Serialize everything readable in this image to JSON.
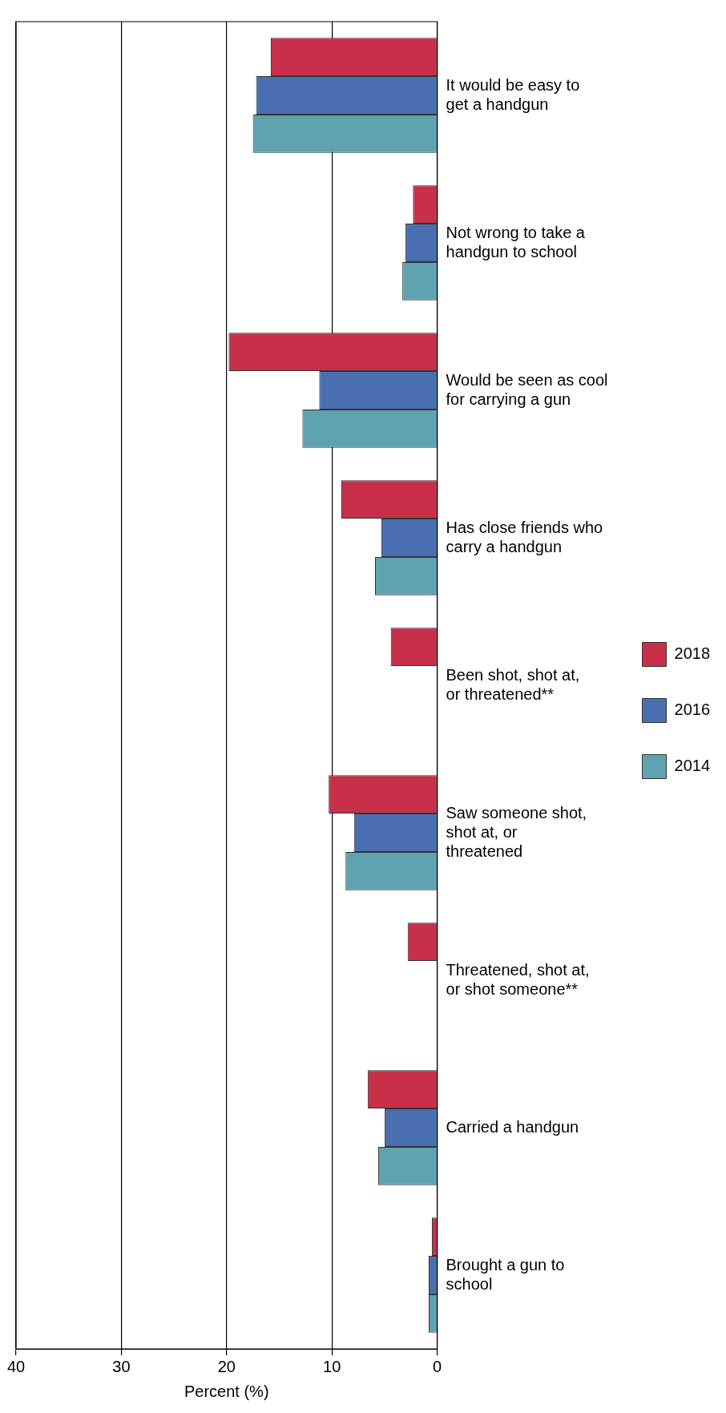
{
  "chart_data": {
    "type": "bar",
    "orientation": "horizontal",
    "xlabel": "Percent (%)",
    "categories": [
      "It would be easy to get a handgun",
      "Not wrong to take a handgun to school",
      "Would be seen as cool for carrying a gun",
      "Has close friends who carry a handgun",
      "Been shot, shot at, or threatened**",
      "Saw someone shot, shot at, or threatened",
      "Threatened, shot at, or shot someone**",
      "Carried a handgun",
      "Brought a gun to school"
    ],
    "series": [
      {
        "name": "2018",
        "color": "#c8304a",
        "values": [
          15.8,
          2.3,
          19.8,
          9.1,
          4.4,
          10.3,
          2.8,
          6.6,
          0.5
        ]
      },
      {
        "name": "2016",
        "color": "#4a6fb0",
        "values": [
          17.2,
          3.0,
          11.2,
          5.3,
          null,
          7.9,
          null,
          5.0,
          0.8
        ]
      },
      {
        "name": "2014",
        "color": "#5fa3b0",
        "values": [
          17.5,
          3.3,
          12.8,
          5.9,
          null,
          8.7,
          null,
          5.6,
          0.8
        ]
      }
    ],
    "xlim": [
      40,
      0
    ],
    "xticks": [
      0,
      10,
      20,
      30,
      40
    ],
    "grid": "x",
    "legend": "right"
  }
}
